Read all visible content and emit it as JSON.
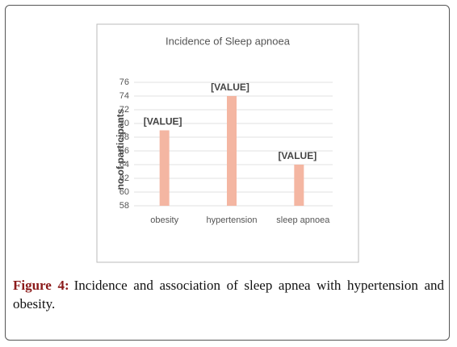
{
  "chart_data": {
    "type": "bar",
    "title": "Incidence of Sleep apnoea",
    "y_label": "no.of participants",
    "categories": [
      "obesity",
      "hypertension",
      "sleep apnoea"
    ],
    "values": [
      69,
      74,
      64
    ],
    "value_labels": [
      "[VALUE]",
      "[VALUE]",
      "[VALUE]"
    ],
    "color": "#f4b6a2",
    "ylim": [
      58,
      76
    ],
    "yticks": [
      58,
      60,
      62,
      64,
      66,
      68,
      70,
      72,
      74,
      76
    ],
    "grid": true
  },
  "caption": {
    "label": "Figure 4:",
    "text": "Incidence and association of sleep apnea with hypertension and obesity."
  }
}
